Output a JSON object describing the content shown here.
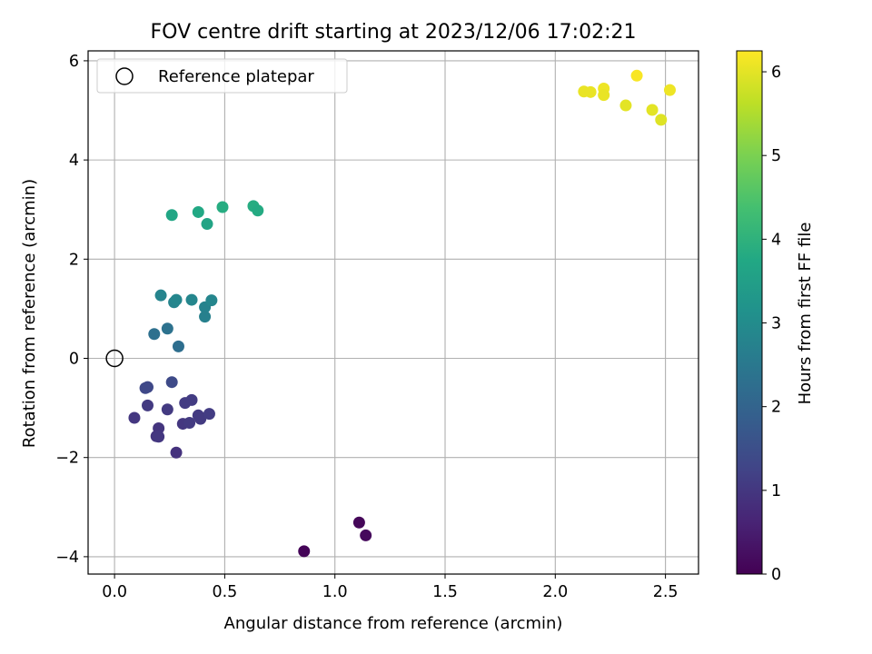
{
  "chart_data": {
    "type": "scatter",
    "title": "FOV centre drift starting at 2023/12/06 17:02:21",
    "xlabel": "Angular distance from reference (arcmin)",
    "ylabel": "Rotation from reference (arcmin)",
    "xlim": [
      -0.12,
      2.65
    ],
    "ylim": [
      -4.35,
      6.2
    ],
    "x_ticks": [
      0.0,
      0.5,
      1.0,
      1.5,
      2.0,
      2.5
    ],
    "x_tick_labels": [
      "0.0",
      "0.5",
      "1.0",
      "1.5",
      "2.0",
      "2.5"
    ],
    "y_ticks": [
      -4,
      -2,
      0,
      2,
      4,
      6
    ],
    "y_tick_labels": [
      "−4",
      "−2",
      "0",
      "2",
      "4",
      "6"
    ],
    "grid": true,
    "legend": {
      "placement": "top-left",
      "entries": [
        "Reference platepar"
      ]
    },
    "reference_point": {
      "x": 0.0,
      "y": 0.0
    },
    "colorbar": {
      "label": "Hours from first FF file",
      "range": [
        0,
        6.25
      ],
      "ticks": [
        0,
        1,
        2,
        3,
        4,
        5,
        6
      ],
      "tick_labels": [
        "0",
        "1",
        "2",
        "3",
        "4",
        "5",
        "6"
      ],
      "colormap": "viridis"
    },
    "points": [
      {
        "x": 0.86,
        "y": -3.89,
        "c": 0.05
      },
      {
        "x": 1.11,
        "y": -3.31,
        "c": 0.1
      },
      {
        "x": 1.14,
        "y": -3.57,
        "c": 0.15
      },
      {
        "x": 0.09,
        "y": -1.2,
        "c": 1.0
      },
      {
        "x": 0.15,
        "y": -0.95,
        "c": 1.05
      },
      {
        "x": 0.14,
        "y": -0.6,
        "c": 1.35
      },
      {
        "x": 0.15,
        "y": -0.58,
        "c": 1.35
      },
      {
        "x": 0.19,
        "y": -1.57,
        "c": 0.95
      },
      {
        "x": 0.2,
        "y": -1.41,
        "c": 0.95
      },
      {
        "x": 0.2,
        "y": -1.58,
        "c": 1.0
      },
      {
        "x": 0.24,
        "y": -1.03,
        "c": 1.05
      },
      {
        "x": 0.26,
        "y": -0.48,
        "c": 1.4
      },
      {
        "x": 0.28,
        "y": -1.9,
        "c": 0.9
      },
      {
        "x": 0.31,
        "y": -1.32,
        "c": 1.0
      },
      {
        "x": 0.32,
        "y": -0.9,
        "c": 1.1
      },
      {
        "x": 0.34,
        "y": -1.3,
        "c": 1.05
      },
      {
        "x": 0.35,
        "y": -0.84,
        "c": 1.1
      },
      {
        "x": 0.38,
        "y": -1.15,
        "c": 1.05
      },
      {
        "x": 0.39,
        "y": -1.22,
        "c": 1.05
      },
      {
        "x": 0.43,
        "y": -1.12,
        "c": 1.1
      },
      {
        "x": 0.18,
        "y": 0.49,
        "c": 2.3
      },
      {
        "x": 0.24,
        "y": 0.6,
        "c": 2.35
      },
      {
        "x": 0.29,
        "y": 0.24,
        "c": 2.25
      },
      {
        "x": 0.21,
        "y": 1.27,
        "c": 2.8
      },
      {
        "x": 0.27,
        "y": 1.13,
        "c": 2.8
      },
      {
        "x": 0.28,
        "y": 1.18,
        "c": 2.85
      },
      {
        "x": 0.35,
        "y": 1.18,
        "c": 2.85
      },
      {
        "x": 0.41,
        "y": 1.03,
        "c": 2.75
      },
      {
        "x": 0.41,
        "y": 0.84,
        "c": 2.7
      },
      {
        "x": 0.44,
        "y": 1.17,
        "c": 2.85
      },
      {
        "x": 0.26,
        "y": 2.89,
        "c": 3.7
      },
      {
        "x": 0.38,
        "y": 2.95,
        "c": 3.75
      },
      {
        "x": 0.42,
        "y": 2.71,
        "c": 3.65
      },
      {
        "x": 0.49,
        "y": 3.05,
        "c": 3.85
      },
      {
        "x": 0.63,
        "y": 3.07,
        "c": 3.85
      },
      {
        "x": 0.65,
        "y": 2.98,
        "c": 3.8
      },
      {
        "x": 2.13,
        "y": 5.38,
        "c": 6.05
      },
      {
        "x": 2.16,
        "y": 5.37,
        "c": 6.05
      },
      {
        "x": 2.22,
        "y": 5.44,
        "c": 6.1
      },
      {
        "x": 2.22,
        "y": 5.31,
        "c": 6.05
      },
      {
        "x": 2.32,
        "y": 5.1,
        "c": 6.0
      },
      {
        "x": 2.37,
        "y": 5.7,
        "c": 6.2
      },
      {
        "x": 2.44,
        "y": 5.01,
        "c": 6.0
      },
      {
        "x": 2.48,
        "y": 4.81,
        "c": 5.95
      },
      {
        "x": 2.52,
        "y": 5.41,
        "c": 6.1
      }
    ]
  }
}
